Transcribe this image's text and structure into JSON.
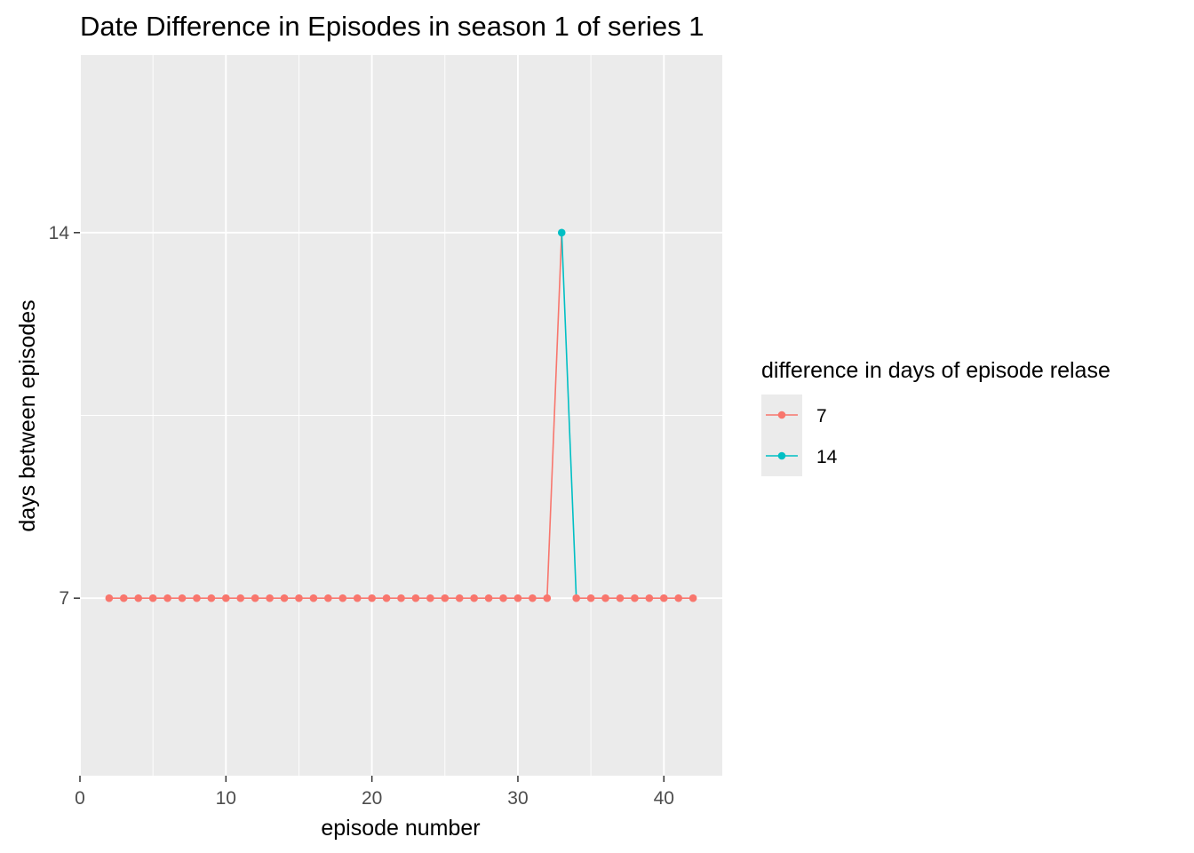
{
  "chart_data": {
    "type": "line",
    "title": "Date Difference in Episodes in season 1 of series 1",
    "xlabel": "episode number",
    "ylabel": "days between episodes",
    "xlim": [
      0,
      44
    ],
    "ylim": [
      3.6,
      17.4
    ],
    "x_ticks": [
      0,
      10,
      20,
      30,
      40
    ],
    "x_minor_ticks": [
      5,
      15,
      25,
      35
    ],
    "y_ticks": [
      7,
      14
    ],
    "grid": true,
    "panel_background": "#ebebeb",
    "legend": {
      "title": "difference in days of episode relase",
      "placement": "right",
      "entries": [
        {
          "label": "7",
          "color": "#f8766d"
        },
        {
          "label": "14",
          "color": "#00bfc4"
        }
      ]
    },
    "x": [
      2,
      3,
      4,
      5,
      6,
      7,
      8,
      9,
      10,
      11,
      12,
      13,
      14,
      15,
      16,
      17,
      18,
      19,
      20,
      21,
      22,
      23,
      24,
      25,
      26,
      27,
      28,
      29,
      30,
      31,
      32,
      33,
      34,
      35,
      36,
      37,
      38,
      39,
      40,
      41,
      42
    ],
    "y": [
      7,
      7,
      7,
      7,
      7,
      7,
      7,
      7,
      7,
      7,
      7,
      7,
      7,
      7,
      7,
      7,
      7,
      7,
      7,
      7,
      7,
      7,
      7,
      7,
      7,
      7,
      7,
      7,
      7,
      7,
      7,
      14,
      7,
      7,
      7,
      7,
      7,
      7,
      7,
      7,
      7
    ],
    "group": [
      "7",
      "7",
      "7",
      "7",
      "7",
      "7",
      "7",
      "7",
      "7",
      "7",
      "7",
      "7",
      "7",
      "7",
      "7",
      "7",
      "7",
      "7",
      "7",
      "7",
      "7",
      "7",
      "7",
      "7",
      "7",
      "7",
      "7",
      "7",
      "7",
      "7",
      "7",
      "14",
      "7",
      "7",
      "7",
      "7",
      "7",
      "7",
      "7",
      "7",
      "7"
    ]
  }
}
